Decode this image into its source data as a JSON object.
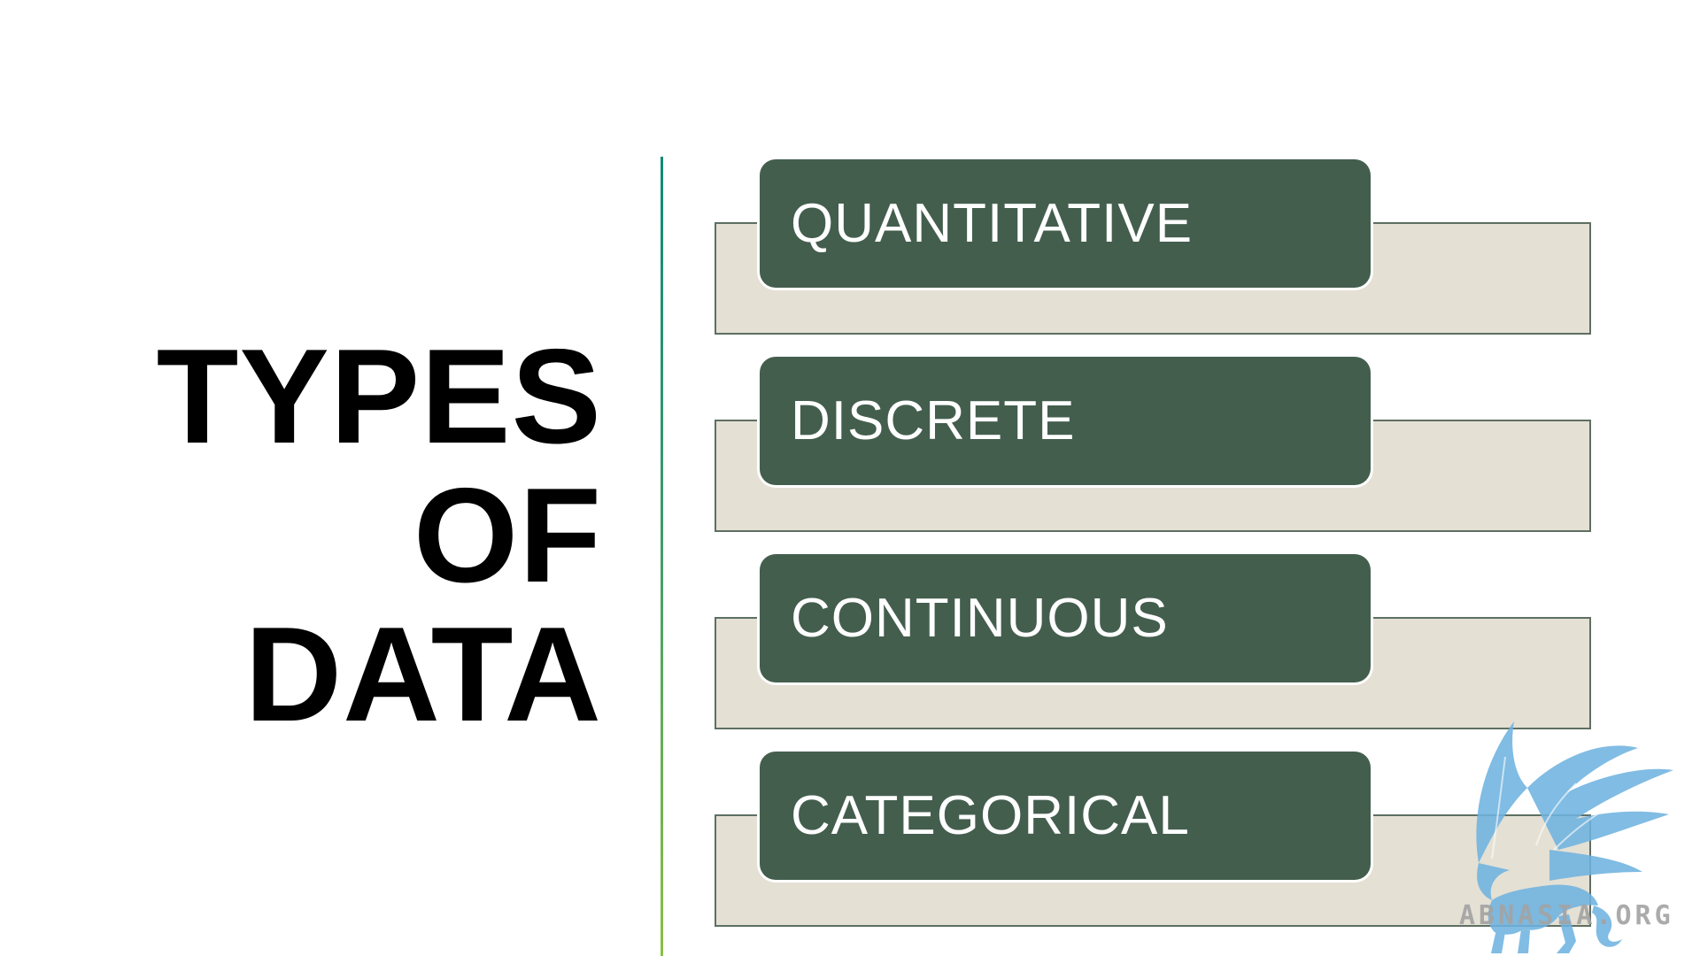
{
  "slide": {
    "title_lines": [
      "TYPES",
      "OF",
      "DATA"
    ],
    "items": [
      {
        "label": "QUANTITATIVE"
      },
      {
        "label": "DISCRETE"
      },
      {
        "label": "CONTINUOUS"
      },
      {
        "label": "CATEGORICAL"
      }
    ]
  },
  "watermark": {
    "text": "ABNASIA.ORG",
    "icon": "griffin-logo-icon"
  },
  "colors": {
    "label_box": "#445e4e",
    "back_box": "#e4e0d4",
    "back_border": "#5e6f62",
    "divider_top": "#0f8a78",
    "divider_bottom": "#8cc043",
    "logo": "#6fb3e0"
  }
}
